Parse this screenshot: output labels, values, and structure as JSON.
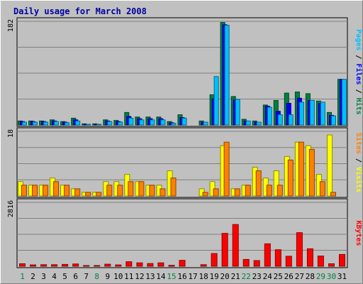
{
  "chart_data": {
    "type": "bar",
    "title": "Daily usage for March 2008",
    "days": [
      "1",
      "2",
      "3",
      "4",
      "5",
      "6",
      "7",
      "8",
      "9",
      "10",
      "11",
      "12",
      "13",
      "14",
      "15",
      "16",
      "17",
      "18",
      "19",
      "20",
      "21",
      "22",
      "23",
      "24",
      "25",
      "26",
      "27",
      "28",
      "29",
      "30",
      "31"
    ],
    "weekend_days": [
      "1",
      "8",
      "15",
      "22",
      "29",
      "30"
    ],
    "panels": [
      {
        "name": "hits-files-pages",
        "ymax": 182,
        "ymax_label": "182",
        "side_label": [
          "Pages",
          "Files",
          "Hits"
        ],
        "series": [
          {
            "name": "Hits",
            "color": "#008040",
            "values": [
              7,
              7,
              7,
              9,
              6,
              12,
              2,
              2,
              9,
              8,
              22,
              14,
              14,
              14,
              6,
              18,
              0,
              7,
              53,
              180,
              50,
              10,
              7,
              35,
              43,
              56,
              58,
              55,
              42,
              22,
              80
            ]
          },
          {
            "name": "Files",
            "color": "#0000ff",
            "values": [
              6,
              6,
              6,
              7,
              5,
              9,
              1,
              1,
              7,
              6,
              15,
              11,
              11,
              11,
              4,
              13,
              0,
              5,
              46,
              176,
              44,
              7,
              5,
              33,
              24,
              38,
              47,
              43,
              38,
              17,
              80
            ]
          },
          {
            "name": "Pages",
            "color": "#00c0ff",
            "values": [
              5,
              5,
              5,
              6,
              4,
              7,
              1,
              1,
              6,
              5,
              12,
              9,
              9,
              9,
              3,
              12,
              0,
              5,
              85,
              175,
              45,
              7,
              5,
              31,
              18,
              18,
              40,
              43,
              40,
              16,
              80
            ]
          }
        ]
      },
      {
        "name": "visits-sites",
        "ymax": 18,
        "ymax_label": "18",
        "side_label": [
          "Sites",
          "Visits"
        ],
        "series": [
          {
            "name": "Visits",
            "color": "#ffff00",
            "values": [
              4,
              3,
              3,
              5,
              3,
              2,
              1,
              1,
              4,
              4,
              6,
              4,
              3,
              3,
              7,
              0,
              0,
              2,
              4,
              14,
              2,
              3,
              8,
              5,
              7,
              11,
              15,
              14,
              6,
              17,
              0
            ]
          },
          {
            "name": "Sites",
            "color": "#ff8000",
            "values": [
              3,
              3,
              3,
              4,
              3,
              2,
              1,
              1,
              3,
              3,
              4,
              4,
              3,
              2,
              5,
              0,
              0,
              1,
              2,
              15,
              2,
              3,
              7,
              3,
              3,
              10,
              15,
              13,
              4,
              1,
              0
            ]
          }
        ]
      },
      {
        "name": "kbytes",
        "ymax": 2816,
        "ymax_label": "2816",
        "side_label": [
          "KBytes"
        ],
        "series": [
          {
            "name": "KBytes",
            "color": "#ff0000",
            "values": [
              110,
              60,
              70,
              70,
              80,
              100,
              20,
              20,
              90,
              60,
              200,
              150,
              120,
              150,
              40,
              260,
              0,
              70,
              560,
              1450,
              1840,
              300,
              250,
              990,
              730,
              440,
              1480,
              770,
              450,
              110,
              520
            ]
          }
        ]
      }
    ]
  }
}
